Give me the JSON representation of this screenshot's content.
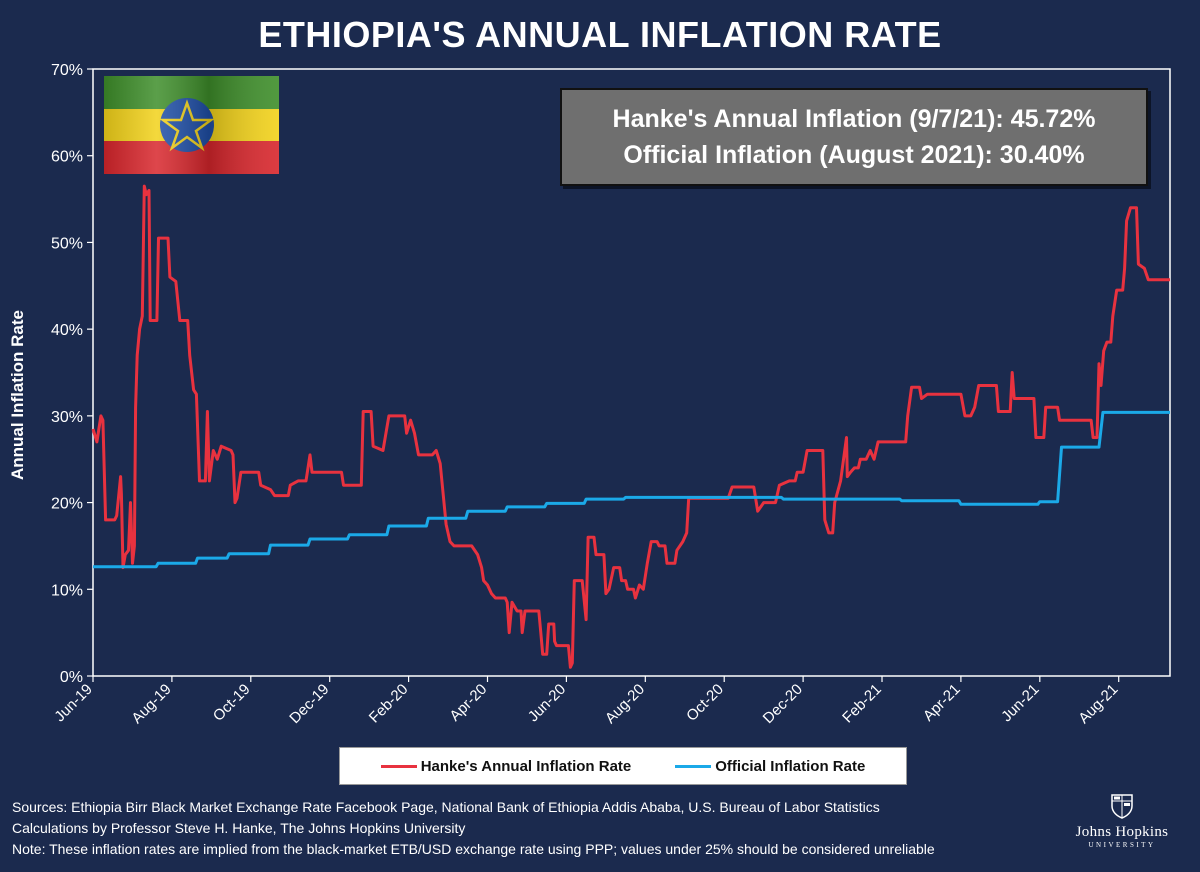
{
  "title": "ETHIOPIA'S ANNUAL INFLATION RATE",
  "info_box": {
    "line1": "Hanke's Annual Inflation (9/7/21): 45.72%",
    "line2": "Official Inflation (August 2021): 30.40%"
  },
  "legend": {
    "hanke": "Hanke's Annual Inflation Rate",
    "official": "Official Inflation Rate"
  },
  "sources": [
    "Sources: Ethiopia Birr Black Market Exchange Rate Facebook Page, National Bank of Ethiopia Addis Ababa, U.S. Bureau of Labor Statistics",
    "Calculations by Professor Steve H. Hanke, The Johns Hopkins University",
    "Note: These inflation rates are implied from the black-market ETB/USD exchange rate using PPP; values under 25% should be considered unreliable"
  ],
  "logo": {
    "name": "Johns Hopkins",
    "subtitle": "UNIVERSITY"
  },
  "colors": {
    "background": "#1b2a4e",
    "hanke": "#e8323f",
    "official": "#1ba9e8",
    "info_box": "#6f6f6f"
  },
  "chart_data": {
    "type": "line",
    "title": "ETHIOPIA'S ANNUAL INFLATION RATE",
    "xlabel": "",
    "ylabel": "Annual Inflation Rate",
    "ylim": [
      0,
      70
    ],
    "yticks": [
      "0%",
      "10%",
      "20%",
      "30%",
      "40%",
      "50%",
      "60%",
      "70%"
    ],
    "xlim": [
      0,
      27.3
    ],
    "xticks": [
      {
        "label": "Jun-19",
        "x": 0
      },
      {
        "label": "Aug-19",
        "x": 2
      },
      {
        "label": "Oct-19",
        "x": 4
      },
      {
        "label": "Dec-19",
        "x": 6
      },
      {
        "label": "Feb-20",
        "x": 8
      },
      {
        "label": "Apr-20",
        "x": 10
      },
      {
        "label": "Jun-20",
        "x": 12
      },
      {
        "label": "Aug-20",
        "x": 14
      },
      {
        "label": "Oct-20",
        "x": 16
      },
      {
        "label": "Dec-20",
        "x": 18
      },
      {
        "label": "Feb-21",
        "x": 20
      },
      {
        "label": "Apr-21",
        "x": 22
      },
      {
        "label": "Jun-21",
        "x": 24
      },
      {
        "label": "Aug-21",
        "x": 26
      }
    ],
    "x_unit": "months since Jun-2019",
    "series": [
      {
        "name": "Hanke's Annual Inflation Rate",
        "color": "#e8323f",
        "points": [
          [
            0,
            28.5
          ],
          [
            0.1,
            27
          ],
          [
            0.2,
            30
          ],
          [
            0.25,
            29.5
          ],
          [
            0.32,
            18
          ],
          [
            0.55,
            18
          ],
          [
            0.6,
            18.5
          ],
          [
            0.7,
            23
          ],
          [
            0.72,
            21
          ],
          [
            0.76,
            12.5
          ],
          [
            0.82,
            14
          ],
          [
            0.9,
            14.5
          ],
          [
            0.95,
            20
          ],
          [
            1.0,
            13
          ],
          [
            1.05,
            15
          ],
          [
            1.08,
            31
          ],
          [
            1.12,
            37
          ],
          [
            1.18,
            40
          ],
          [
            1.25,
            41.5
          ],
          [
            1.3,
            56.5
          ],
          [
            1.35,
            55.5
          ],
          [
            1.42,
            56
          ],
          [
            1.45,
            41
          ],
          [
            1.55,
            41
          ],
          [
            1.62,
            41
          ],
          [
            1.66,
            50.5
          ],
          [
            1.9,
            50.5
          ],
          [
            1.95,
            46
          ],
          [
            2.1,
            45.5
          ],
          [
            2.2,
            41
          ],
          [
            2.4,
            41
          ],
          [
            2.45,
            37
          ],
          [
            2.55,
            33
          ],
          [
            2.62,
            32.5
          ],
          [
            2.7,
            22.5
          ],
          [
            2.85,
            22.5
          ],
          [
            2.9,
            30.5
          ],
          [
            2.95,
            22.5
          ],
          [
            3.05,
            26
          ],
          [
            3.15,
            25
          ],
          [
            3.25,
            26.5
          ],
          [
            3.5,
            26
          ],
          [
            3.55,
            25.5
          ],
          [
            3.6,
            20
          ],
          [
            3.65,
            20.5
          ],
          [
            3.75,
            23.5
          ],
          [
            4.2,
            23.5
          ],
          [
            4.25,
            22
          ],
          [
            4.5,
            21.5
          ],
          [
            4.6,
            20.8
          ],
          [
            4.95,
            20.8
          ],
          [
            5.0,
            22
          ],
          [
            5.2,
            22.5
          ],
          [
            5.4,
            22.5
          ],
          [
            5.5,
            25.5
          ],
          [
            5.55,
            23.5
          ],
          [
            6.0,
            23.5
          ],
          [
            6.3,
            23.5
          ],
          [
            6.35,
            22
          ],
          [
            6.8,
            22
          ],
          [
            6.85,
            30.5
          ],
          [
            7.05,
            30.5
          ],
          [
            7.1,
            26.5
          ],
          [
            7.2,
            26.3
          ],
          [
            7.35,
            26
          ],
          [
            7.5,
            30
          ],
          [
            7.9,
            30
          ],
          [
            7.95,
            28
          ],
          [
            8.05,
            29.5
          ],
          [
            8.15,
            28
          ],
          [
            8.25,
            25.5
          ],
          [
            8.6,
            25.5
          ],
          [
            8.7,
            26
          ],
          [
            8.8,
            24.5
          ],
          [
            8.95,
            17.5
          ],
          [
            9.05,
            15.5
          ],
          [
            9.15,
            15
          ],
          [
            9.6,
            15
          ],
          [
            9.75,
            14
          ],
          [
            9.85,
            12.5
          ],
          [
            9.9,
            11
          ],
          [
            10.0,
            10.5
          ],
          [
            10.1,
            9.5
          ],
          [
            10.2,
            9
          ],
          [
            10.45,
            9
          ],
          [
            10.5,
            8.5
          ],
          [
            10.55,
            5
          ],
          [
            10.62,
            8.5
          ],
          [
            10.75,
            7.5
          ],
          [
            10.85,
            7.5
          ],
          [
            10.88,
            5
          ],
          [
            10.95,
            7.5
          ],
          [
            11.3,
            7.5
          ],
          [
            11.35,
            5
          ],
          [
            11.4,
            2.5
          ],
          [
            11.5,
            2.5
          ],
          [
            11.55,
            6
          ],
          [
            11.68,
            6
          ],
          [
            11.7,
            4
          ],
          [
            11.75,
            3.5
          ],
          [
            12.05,
            3.5
          ],
          [
            12.1,
            1
          ],
          [
            12.15,
            1.5
          ],
          [
            12.2,
            11
          ],
          [
            12.4,
            11
          ],
          [
            12.5,
            6.5
          ],
          [
            12.55,
            16
          ],
          [
            12.7,
            16
          ],
          [
            12.75,
            14
          ],
          [
            12.95,
            14
          ],
          [
            13.0,
            9.5
          ],
          [
            13.08,
            10
          ],
          [
            13.2,
            12.5
          ],
          [
            13.35,
            12.5
          ],
          [
            13.4,
            11
          ],
          [
            13.5,
            11
          ],
          [
            13.55,
            10
          ],
          [
            13.7,
            10
          ],
          [
            13.75,
            9
          ],
          [
            13.85,
            10.5
          ],
          [
            13.95,
            10
          ],
          [
            14.05,
            13
          ],
          [
            14.15,
            15.5
          ],
          [
            14.3,
            15.5
          ],
          [
            14.35,
            15
          ],
          [
            14.5,
            15
          ],
          [
            14.55,
            13
          ],
          [
            14.75,
            13
          ],
          [
            14.8,
            14.5
          ],
          [
            14.95,
            15.5
          ],
          [
            15.05,
            16.5
          ],
          [
            15.1,
            20.5
          ],
          [
            15.3,
            20.5
          ],
          [
            16.0,
            20.5
          ],
          [
            16.1,
            20.5
          ],
          [
            16.2,
            21.8
          ],
          [
            16.75,
            21.8
          ],
          [
            16.85,
            19
          ],
          [
            17.0,
            20
          ],
          [
            17.3,
            20
          ],
          [
            17.4,
            22
          ],
          [
            17.65,
            22.5
          ],
          [
            17.8,
            22.5
          ],
          [
            17.85,
            23.5
          ],
          [
            18.0,
            23.5
          ],
          [
            18.1,
            26
          ],
          [
            18.5,
            26
          ],
          [
            18.55,
            18
          ],
          [
            18.65,
            16.5
          ],
          [
            18.75,
            16.5
          ],
          [
            18.8,
            20
          ],
          [
            18.95,
            22.5
          ],
          [
            19.1,
            27.5
          ],
          [
            19.12,
            23
          ],
          [
            19.2,
            23.5
          ],
          [
            19.3,
            24
          ],
          [
            19.4,
            24
          ],
          [
            19.45,
            25
          ],
          [
            19.6,
            25
          ],
          [
            19.7,
            26
          ],
          [
            19.8,
            25
          ],
          [
            19.9,
            27
          ],
          [
            20.6,
            27
          ],
          [
            20.65,
            30
          ],
          [
            20.75,
            33.3
          ],
          [
            20.95,
            33.3
          ],
          [
            21.0,
            32
          ],
          [
            21.15,
            32.5
          ],
          [
            22.0,
            32.5
          ],
          [
            22.1,
            30
          ],
          [
            22.25,
            30
          ],
          [
            22.35,
            31
          ],
          [
            22.45,
            33.5
          ],
          [
            22.9,
            33.5
          ],
          [
            22.95,
            30.5
          ],
          [
            23.25,
            30.5
          ],
          [
            23.3,
            35
          ],
          [
            23.35,
            32
          ],
          [
            23.85,
            32
          ],
          [
            23.9,
            27.5
          ],
          [
            24.1,
            27.5
          ],
          [
            24.15,
            31
          ],
          [
            24.45,
            31
          ],
          [
            24.5,
            29.5
          ],
          [
            25.3,
            29.5
          ],
          [
            25.35,
            27.5
          ],
          [
            25.45,
            27.5
          ],
          [
            25.5,
            36
          ],
          [
            25.55,
            33.5
          ],
          [
            25.62,
            37.5
          ],
          [
            25.7,
            38.5
          ],
          [
            25.8,
            38.5
          ],
          [
            25.85,
            41.5
          ],
          [
            25.95,
            44.5
          ],
          [
            26.1,
            44.5
          ],
          [
            26.15,
            47
          ],
          [
            26.2,
            52.5
          ],
          [
            26.3,
            54
          ],
          [
            26.45,
            54
          ],
          [
            26.5,
            47.5
          ],
          [
            26.65,
            47
          ],
          [
            26.75,
            45.7
          ],
          [
            27.3,
            45.7
          ]
        ]
      },
      {
        "name": "Official Inflation Rate",
        "color": "#1ba9e8",
        "points": [
          [
            0,
            12.6
          ],
          [
            0.8,
            12.6
          ],
          [
            1.6,
            12.6
          ],
          [
            1.65,
            13
          ],
          [
            2.6,
            13
          ],
          [
            2.65,
            13.6
          ],
          [
            3.4,
            13.6
          ],
          [
            3.45,
            14.1
          ],
          [
            4.45,
            14.1
          ],
          [
            4.5,
            15.1
          ],
          [
            5.45,
            15.1
          ],
          [
            5.5,
            15.8
          ],
          [
            6.45,
            15.8
          ],
          [
            6.5,
            16.3
          ],
          [
            7.45,
            16.3
          ],
          [
            7.5,
            17.3
          ],
          [
            8.45,
            17.3
          ],
          [
            8.5,
            18.2
          ],
          [
            9.45,
            18.2
          ],
          [
            9.5,
            19
          ],
          [
            10.45,
            19
          ],
          [
            10.5,
            19.5
          ],
          [
            11.45,
            19.5
          ],
          [
            11.5,
            19.9
          ],
          [
            12.45,
            19.9
          ],
          [
            12.5,
            20.4
          ],
          [
            13.45,
            20.4
          ],
          [
            13.5,
            20.6
          ],
          [
            17.45,
            20.6
          ],
          [
            17.5,
            20.4
          ],
          [
            20.45,
            20.4
          ],
          [
            20.5,
            20.2
          ],
          [
            21.95,
            20.2
          ],
          [
            22.0,
            19.8
          ],
          [
            23.95,
            19.8
          ],
          [
            24.0,
            20.1
          ],
          [
            24.45,
            20.1
          ],
          [
            24.55,
            26.4
          ],
          [
            25.45,
            26.4
          ],
          [
            25.5,
            26.4
          ],
          [
            25.6,
            30.4
          ],
          [
            27.3,
            30.4
          ]
        ]
      }
    ],
    "legend_position": "bottom"
  }
}
